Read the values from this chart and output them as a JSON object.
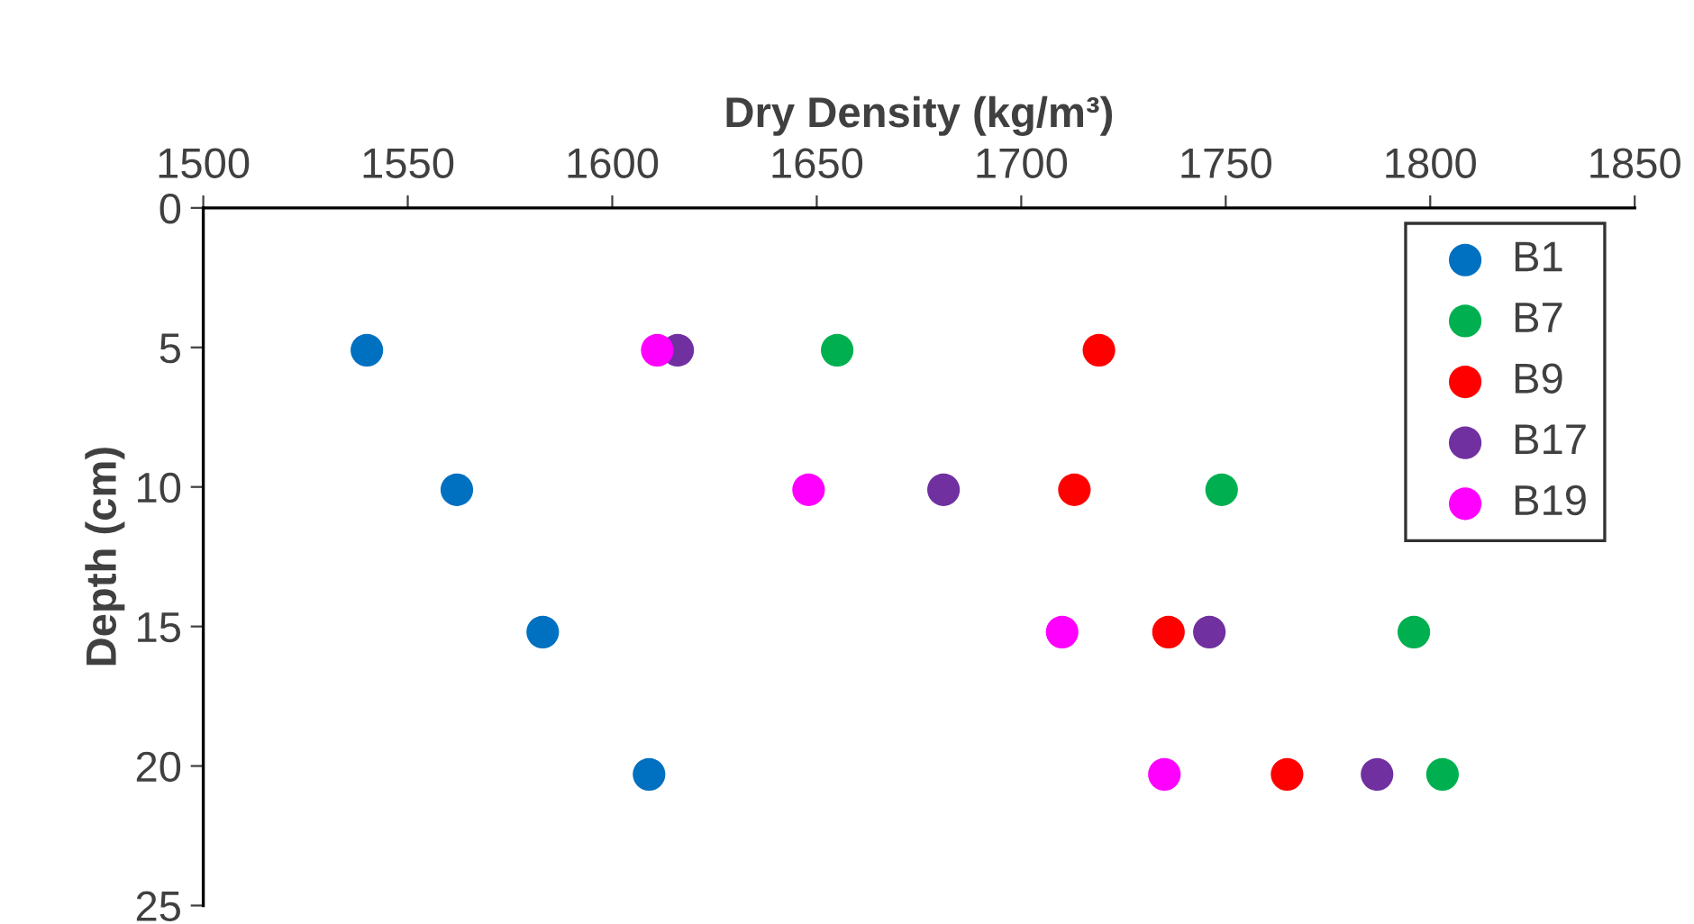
{
  "chart_data": {
    "type": "scatter",
    "xlabel": "Dry Density (kg/m³)",
    "ylabel": "Depth (cm)",
    "xlim": [
      1500,
      1850
    ],
    "xticks": [
      1500,
      1550,
      1600,
      1650,
      1700,
      1750,
      1800,
      1850
    ],
    "ylim": [
      25,
      0
    ],
    "yticks": [
      0,
      5,
      10,
      15,
      20,
      25
    ],
    "grid": false,
    "legend": "top right",
    "marker": "circle",
    "series": [
      {
        "name": "B1",
        "color": "#0070c0",
        "x": [
          1540,
          1562,
          1583,
          1609
        ],
        "values": [
          5.1,
          10.1,
          15.2,
          20.3
        ]
      },
      {
        "name": "B7",
        "color": "#00b050",
        "x": [
          1655,
          1749,
          1796,
          1803
        ],
        "values": [
          5.1,
          10.1,
          15.2,
          20.3
        ]
      },
      {
        "name": "B9",
        "color": "#ff0000",
        "x": [
          1719,
          1713,
          1736,
          1765
        ],
        "values": [
          5.1,
          10.1,
          15.2,
          20.3
        ]
      },
      {
        "name": "B17",
        "color": "#7030a0",
        "x": [
          1616,
          1681,
          1746,
          1787
        ],
        "values": [
          5.1,
          10.1,
          15.2,
          20.3
        ]
      },
      {
        "name": "B19",
        "color": "#ff00ff",
        "x": [
          1611,
          1648,
          1710,
          1735
        ],
        "values": [
          5.1,
          10.1,
          15.2,
          20.3
        ]
      }
    ]
  }
}
